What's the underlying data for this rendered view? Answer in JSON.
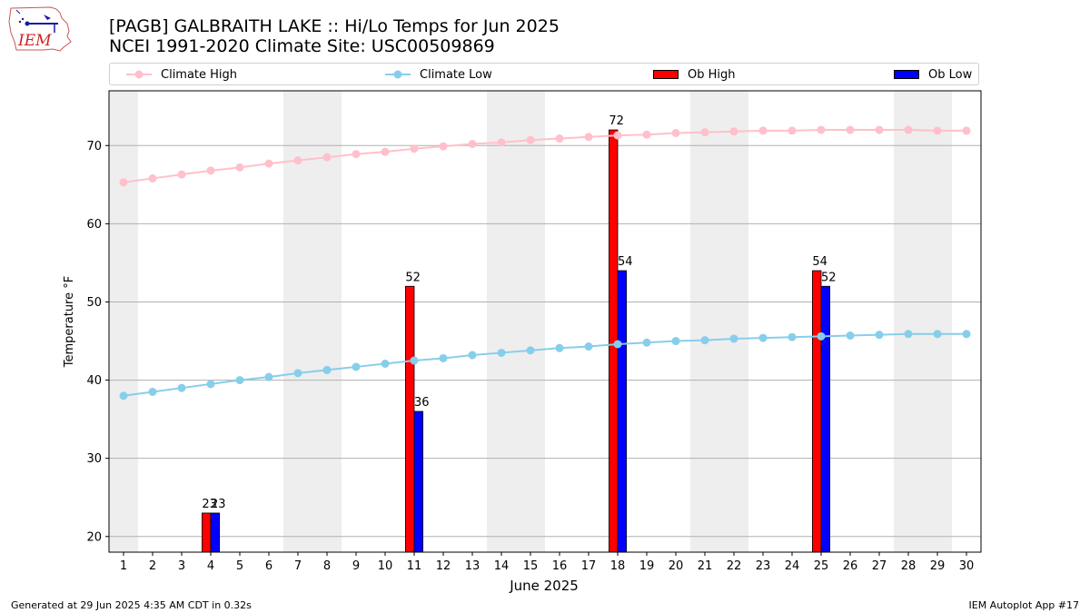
{
  "header": {
    "title_line1": "[PAGB] GALBRAITH LAKE :: Hi/Lo Temps for Jun 2025",
    "title_line2": "NCEI 1991-2020 Climate Site: USC00509869",
    "logo_text": "IEM"
  },
  "legend": [
    {
      "label": "Climate High",
      "kind": "line",
      "color": "#FFC0CB"
    },
    {
      "label": "Climate Low",
      "kind": "line",
      "color": "#87CEEB"
    },
    {
      "label": "Ob High",
      "kind": "bar",
      "color": "#FF0000"
    },
    {
      "label": "Ob Low",
      "kind": "bar",
      "color": "#0000FF"
    }
  ],
  "footer": {
    "left": "Generated at 29 Jun 2025 4:35 AM CDT in 0.32s",
    "right": "IEM Autoplot App #17"
  },
  "chart_data": {
    "type": "bar",
    "xlabel": "June 2025",
    "ylabel": "Temperature °F",
    "xlim": [
      0.5,
      30.5
    ],
    "ylim": [
      18,
      77
    ],
    "yticks": [
      20,
      30,
      40,
      50,
      60,
      70
    ],
    "x": [
      1,
      2,
      3,
      4,
      5,
      6,
      7,
      8,
      9,
      10,
      11,
      12,
      13,
      14,
      15,
      16,
      17,
      18,
      19,
      20,
      21,
      22,
      23,
      24,
      25,
      26,
      27,
      28,
      29,
      30
    ],
    "grid": "horizontal",
    "weekend_bands": [
      [
        0.5,
        1.5
      ],
      [
        6.5,
        8.5
      ],
      [
        13.5,
        15.5
      ],
      [
        20.5,
        22.5
      ],
      [
        27.5,
        29.5
      ]
    ],
    "climate_high": {
      "name": "Climate High",
      "color": "#FFC0CB",
      "values": [
        65.3,
        65.8,
        66.3,
        66.8,
        67.2,
        67.7,
        68.1,
        68.5,
        68.9,
        69.2,
        69.6,
        69.9,
        70.2,
        70.4,
        70.7,
        70.9,
        71.1,
        71.3,
        71.4,
        71.6,
        71.7,
        71.8,
        71.9,
        71.9,
        72.0,
        72.0,
        72.0,
        72.0,
        71.9,
        71.9
      ]
    },
    "climate_low": {
      "name": "Climate Low",
      "color": "#87CEEB",
      "values": [
        38.0,
        38.5,
        39.0,
        39.5,
        40.0,
        40.4,
        40.9,
        41.3,
        41.7,
        42.1,
        42.5,
        42.8,
        43.2,
        43.5,
        43.8,
        44.1,
        44.3,
        44.6,
        44.8,
        45.0,
        45.1,
        45.3,
        45.4,
        45.5,
        45.6,
        45.7,
        45.8,
        45.9,
        45.9,
        45.9
      ]
    },
    "ob_high": {
      "name": "Ob High",
      "color": "#FF0000",
      "points": [
        {
          "x": 4,
          "value": 23,
          "label": "23"
        },
        {
          "x": 11,
          "value": 52,
          "label": "52"
        },
        {
          "x": 18,
          "value": 72,
          "label": "72"
        },
        {
          "x": 25,
          "value": 54,
          "label": "54"
        }
      ]
    },
    "ob_low": {
      "name": "Ob Low",
      "color": "#0000FF",
      "points": [
        {
          "x": 4,
          "value": 23,
          "label": "23"
        },
        {
          "x": 11,
          "value": 36,
          "label": "36"
        },
        {
          "x": 18,
          "value": 54,
          "label": "54"
        },
        {
          "x": 25,
          "value": 52,
          "label": "52"
        }
      ]
    }
  }
}
